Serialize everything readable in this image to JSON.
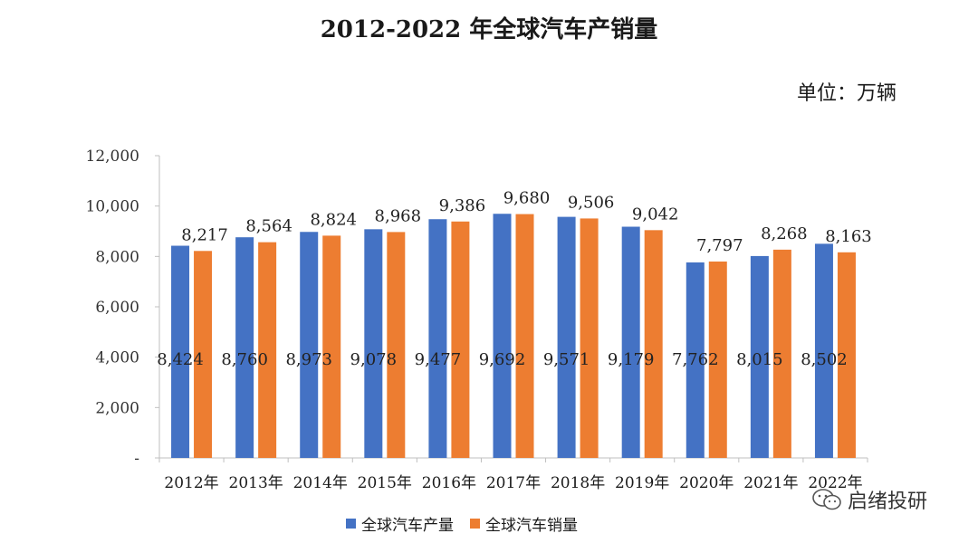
{
  "chart_data": {
    "type": "bar",
    "title": "2012-2022 年全球汽车产销量",
    "unit": "单位：万辆",
    "categories": [
      "2012年",
      "2013年",
      "2014年",
      "2015年",
      "2016年",
      "2017年",
      "2018年",
      "2019年",
      "2020年",
      "2021年",
      "2022年"
    ],
    "series": [
      {
        "name": "全球汽车产量",
        "values": [
          8424,
          8760,
          8973,
          9078,
          9477,
          9692,
          9571,
          9179,
          7762,
          8015,
          8502
        ],
        "color": "#4472C4"
      },
      {
        "name": "全球汽车销量",
        "values": [
          8217,
          8564,
          8824,
          8968,
          9386,
          9680,
          9506,
          9042,
          7797,
          8268,
          8163
        ],
        "color": "#ED7D31"
      }
    ],
    "y_ticks": [
      "-",
      "2,000",
      "4,000",
      "6,000",
      "8,000",
      "10,000",
      "12,000"
    ],
    "production_labels": [
      "8,424",
      "8,760",
      "8,973",
      "9,078",
      "9,477",
      "9,692",
      "9,571",
      "9,179",
      "7,762",
      "8,015",
      "8,502"
    ],
    "sales_labels": [
      "8,217",
      "8,564",
      "8,824",
      "8,968",
      "9,386",
      "9,680",
      "9,506",
      "9,042",
      "7,797",
      "8,268",
      "8,163"
    ],
    "ylim": [
      0,
      12000
    ],
    "grid": false,
    "legend_position": "bottom"
  },
  "watermark": {
    "text": "启绪投研",
    "icon": "wechat-icon"
  }
}
